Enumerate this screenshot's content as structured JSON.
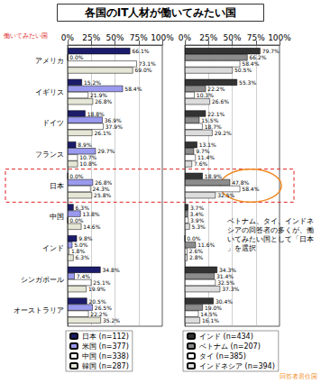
{
  "title": "各国のIT人材が働いてみたい国",
  "chart_data": [
    {
      "type": "bar",
      "orientation": "horizontal",
      "grid": true,
      "data_labels": true,
      "annotations": [
        "働いてみたい国"
      ],
      "categories": [
        "アメリカ",
        "イギリス",
        "ドイツ",
        "フランス",
        "日本",
        "中国",
        "インド",
        "シンガポール",
        "オーストラリア"
      ],
      "xlim": [
        0,
        100
      ],
      "xticks": [
        {
          "value": 0,
          "label": "0%"
        },
        {
          "value": 25,
          "label": "25%"
        },
        {
          "value": 50,
          "label": "50%"
        },
        {
          "value": 75,
          "label": "75%"
        },
        {
          "value": 100,
          "label": "100%"
        }
      ],
      "series": [
        {
          "name": "日本 (n=112)",
          "color": "#1c1c6b",
          "values": [
            66.1,
            15.2,
            18.8,
            8.9,
            0.0,
            6.3,
            9.8,
            34.8,
            20.5
          ],
          "value_labels": [
            "66.1%",
            "15.2%",
            "18.8%",
            "8.9%",
            "0.0%",
            "6.3%",
            "9.8%",
            "34.8%",
            "20.5%"
          ]
        },
        {
          "name": "米国 (n=377)",
          "color": "#9a9aee",
          "values": [
            0.0,
            58.4,
            36.9,
            29.7,
            26.8,
            13.8,
            5.0,
            7.4,
            26.5
          ],
          "value_labels": [
            "0.0%",
            "58.4%",
            "36.9%",
            "29.7%",
            "26.8%",
            "13.8%",
            "5.0%",
            "7.4%",
            "26.5%"
          ]
        },
        {
          "name": "中国 (n=338)",
          "color": "#ffffff",
          "values": [
            73.1,
            21.9,
            37.9,
            10.7,
            24.3,
            0.0,
            1.8,
            25.1,
            22.2
          ],
          "value_labels": [
            "73.1%",
            "21.9%",
            "37.9%",
            "10.7%",
            "24.3%",
            "0.0%",
            "1.8%",
            "25.1%",
            "22.2%"
          ]
        },
        {
          "name": "韓国 (n=287)",
          "color": "#e6e6d6",
          "values": [
            69.0,
            26.8,
            26.1,
            10.8,
            25.8,
            14.6,
            6.3,
            19.9,
            35.2
          ],
          "value_labels": [
            "69.0%",
            "26.8%",
            "26.1%",
            "10.8%",
            "25.8%",
            "14.6%",
            "6.3%",
            "19.9%",
            "35.2%"
          ]
        }
      ]
    },
    {
      "type": "bar",
      "orientation": "horizontal",
      "grid": true,
      "data_labels": true,
      "tick_labels": "x",
      "annotations": [
        "ベトナム、タイ、インドネシアの回答者の多くが、働いてみたい国として「日本」を選択",
        "回答者居住国"
      ],
      "categories": [
        "アメリカ",
        "イギリス",
        "ドイツ",
        "フランス",
        "日本",
        "中国",
        "インド",
        "シンガポール",
        "オーストラリア"
      ],
      "xlim": [
        0,
        100
      ],
      "xticks": [
        {
          "value": 0,
          "label": "0%"
        },
        {
          "value": 25,
          "label": "25%"
        },
        {
          "value": 50,
          "label": "50%"
        },
        {
          "value": 75,
          "label": "75%"
        },
        {
          "value": 100,
          "label": "100%"
        }
      ],
      "series": [
        {
          "name": "インド (n=434)",
          "color": "#333333",
          "values": [
            79.7,
            55.3,
            22.1,
            13.1,
            18.9,
            3.7,
            0.0,
            34.3,
            30.4
          ],
          "value_labels": [
            "79.7%",
            "55.3%",
            "22.1%",
            "13.1%",
            "18.9%",
            "3.7%",
            "0.0%",
            "34.3%",
            "30.4%"
          ]
        },
        {
          "name": "ベトナム (n=207)",
          "color": "#8c8c8c",
          "values": [
            66.2,
            22.2,
            15.5,
            9.7,
            47.8,
            3.4,
            11.6,
            31.4,
            19.0
          ],
          "value_labels": [
            "66.2%",
            "22.2%",
            "15.5%",
            "9.7%",
            "47.8%",
            "3.4%",
            "11.6%",
            "31.4%",
            "19.0%"
          ]
        },
        {
          "name": "タイ (n=385)",
          "color": "#ffffff",
          "values": [
            58.4,
            10.3,
            18.7,
            11.4,
            58.4,
            3.9,
            2.6,
            32.5,
            14.5
          ],
          "value_labels": [
            "58.4%",
            "10.3%",
            "18.7%",
            "11.4%",
            "58.4%",
            "3.9%",
            "2.6%",
            "32.5%",
            "14.5%"
          ]
        },
        {
          "name": "インドネシア (n=394)",
          "color": "#dcdcdc",
          "values": [
            50.5,
            26.6,
            29.2,
            7.6,
            32.5,
            5.3,
            2.8,
            37.3,
            16.1
          ],
          "value_labels": [
            "50.5%",
            "26.6%",
            "29.2%",
            "7.6%",
            "32.5%",
            "5.3%",
            "2.8%",
            "37.3%",
            "16.1%"
          ]
        }
      ]
    }
  ]
}
